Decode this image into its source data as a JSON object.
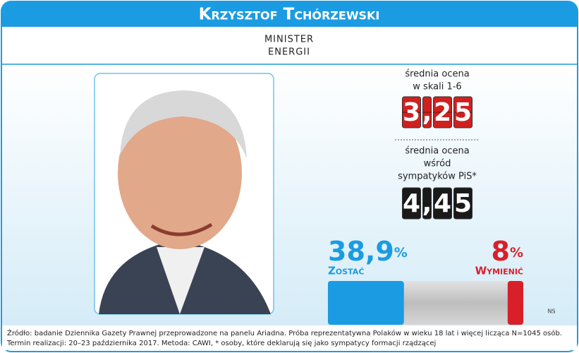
{
  "header": {
    "name": "Krzysztof Tchórzewski",
    "role": [
      "MINISTER",
      "ENERGII"
    ]
  },
  "scores": [
    {
      "label": [
        "średnia ocena",
        "w skali 1-6"
      ],
      "value": 3.25,
      "value_label": "3,25",
      "color": "#d0201f"
    },
    {
      "label": [
        "średnia ocena",
        "wśród",
        "sympatyków PiS*"
      ],
      "value": 4.45,
      "value_label": "4,45",
      "color": "#1a1a1a"
    }
  ],
  "chart_data": {
    "type": "bar",
    "categories": [
      "Zostać",
      "Wymienić"
    ],
    "values": [
      38.9,
      8
    ],
    "value_labels": [
      "38,9%",
      "8%"
    ],
    "colors": [
      "#1b9ce2",
      "#d8202a"
    ],
    "xlim": [
      0,
      100
    ],
    "annotation": "NS"
  },
  "footer": [
    "Źródło: badanie Dziennika Gazety Prawnej przeprowadzone na panelu Ariadna. Próba reprezentatywna Polaków w wieku 18 lat i więcej licząca N=1045 osób.",
    "Termin realizacji: 20–23 października 2017. Metoda: CAWI, * osoby, które deklarują się jako sympatycy formacji rządzącej"
  ]
}
